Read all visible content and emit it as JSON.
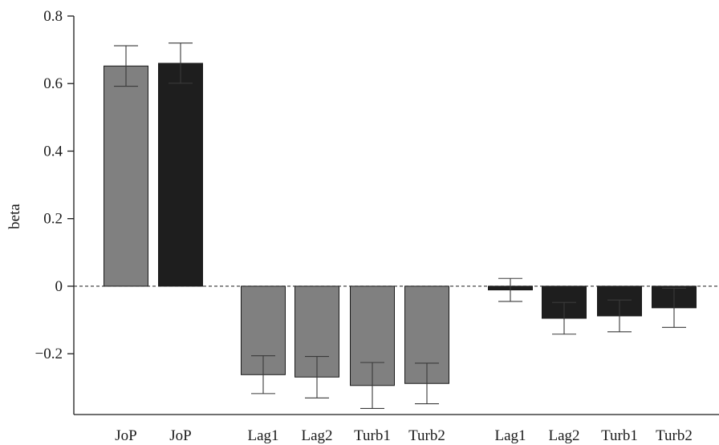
{
  "chart_data": {
    "type": "bar",
    "title": "",
    "xlabel": "",
    "ylabel": "beta",
    "ylim": [
      -0.38,
      0.8
    ],
    "yticks": [
      -0.2,
      0,
      0.2,
      0.4,
      0.6,
      0.8
    ],
    "ytick_labels": [
      "−0.2",
      "0",
      "0.2",
      "0.4",
      "0.6",
      "0.8"
    ],
    "grid": false,
    "legend": "none",
    "colors": {
      "gray": "#808080",
      "black": "#1e1e1e"
    },
    "bars": [
      {
        "label": "JoP",
        "value": 0.652,
        "err_low": 0.592,
        "err_high": 0.712,
        "color": "gray"
      },
      {
        "label": "JoP",
        "value": 0.66,
        "err_low": 0.601,
        "err_high": 0.72,
        "color": "black"
      },
      {
        "label": "Lag1",
        "value": -0.262,
        "err_low": -0.318,
        "err_high": -0.206,
        "color": "gray"
      },
      {
        "label": "Lag2",
        "value": -0.269,
        "err_low": -0.331,
        "err_high": -0.208,
        "color": "gray"
      },
      {
        "label": "Turb1",
        "value": -0.294,
        "err_low": -0.362,
        "err_high": -0.226,
        "color": "gray"
      },
      {
        "label": "Turb2",
        "value": -0.288,
        "err_low": -0.348,
        "err_high": -0.228,
        "color": "gray"
      },
      {
        "label": "Lag1",
        "value": -0.011,
        "err_low": -0.045,
        "err_high": 0.023,
        "color": "black"
      },
      {
        "label": "Lag2",
        "value": -0.095,
        "err_low": -0.142,
        "err_high": -0.048,
        "color": "black"
      },
      {
        "label": "Turb1",
        "value": -0.088,
        "err_low": -0.135,
        "err_high": -0.041,
        "color": "black"
      },
      {
        "label": "Turb2",
        "value": -0.064,
        "err_low": -0.122,
        "err_high": -0.006,
        "color": "black"
      }
    ]
  }
}
